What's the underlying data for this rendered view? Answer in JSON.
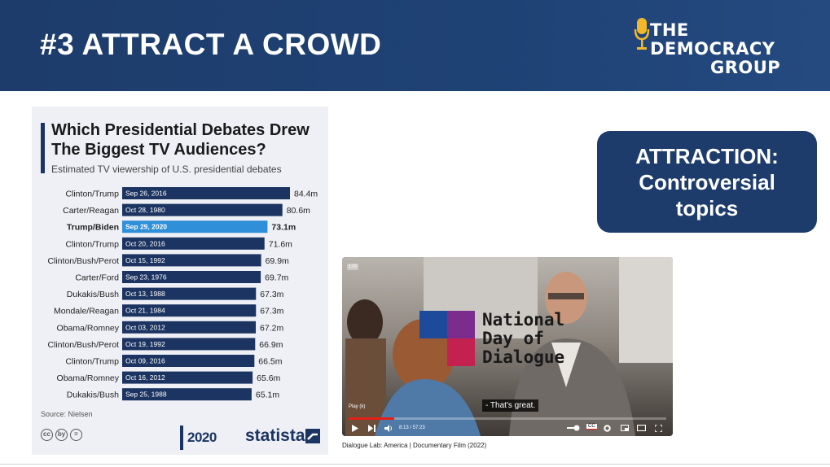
{
  "slide": {
    "title": "#3 ATTRACT A CROWD",
    "logo": {
      "line1": "THE",
      "line2": "DEMOCRACY",
      "line3": "GROUP"
    },
    "callout": {
      "line1": "ATTRACTION:",
      "line2": "Controversial",
      "line3": "topics"
    }
  },
  "infographic": {
    "title": "Which Presidential Debates Drew The Biggest TV Audiences?",
    "subtitle": "Estimated TV viewership of U.S. presidential debates",
    "source": "Source: Nielsen",
    "cc_icons": [
      "cc",
      "by",
      "="
    ],
    "year_badge": "2020",
    "brand": "statista"
  },
  "chart_data": {
    "type": "bar",
    "orientation": "horizontal",
    "title": "Which Presidential Debates Drew The Biggest TV Audiences?",
    "subtitle": "Estimated TV viewership of U.S. presidential debates",
    "unit": "m",
    "categories": [
      "Clinton/Trump",
      "Carter/Reagan",
      "Trump/Biden",
      "Clinton/Trump",
      "Clinton/Bush/Perot",
      "Carter/Ford",
      "Dukakis/Bush",
      "Mondale/Reagan",
      "Obama/Romney",
      "Clinton/Bush/Perot",
      "Clinton/Trump",
      "Obama/Romney",
      "Dukakis/Bush"
    ],
    "dates": [
      "Sep 26, 2016",
      "Oct 28, 1980",
      "Sep 29, 2020",
      "Oct 20, 2016",
      "Oct 15, 1992",
      "Sep 23, 1976",
      "Oct 13, 1988",
      "Oct 21, 1984",
      "Oct 03, 2012",
      "Oct 19, 1992",
      "Oct 09, 2016",
      "Oct 16, 2012",
      "Sep 25, 1988"
    ],
    "values": [
      84.4,
      80.6,
      73.1,
      71.6,
      69.9,
      69.7,
      67.3,
      67.3,
      67.2,
      66.9,
      66.5,
      65.6,
      65.1
    ],
    "value_labels": [
      "84.4m",
      "80.6m",
      "73.1m",
      "71.6m",
      "69.9m",
      "69.7m",
      "67.3m",
      "67.3m",
      "67.2m",
      "66.9m",
      "66.5m",
      "65.6m",
      "65.1m"
    ],
    "highlight_index": 2,
    "colors": {
      "bar": "#1c3461",
      "highlight": "#2f8fd8"
    },
    "source": "Source: Nielsen"
  },
  "video": {
    "logo_lines": [
      "National",
      "Day of",
      "Dialogue"
    ],
    "caption": "- That's great.",
    "tooltip": "Play (k)",
    "hd_badge": "1:00",
    "time": "8:13 / 57:23",
    "progress": 0.143,
    "cc_label": "CC",
    "source": "Dialogue Lab: America | Documentary Film (2022)"
  },
  "colors": {
    "header": "#1d3c6b",
    "accent": "#f3b82a",
    "callout": "#1d3c6b"
  }
}
